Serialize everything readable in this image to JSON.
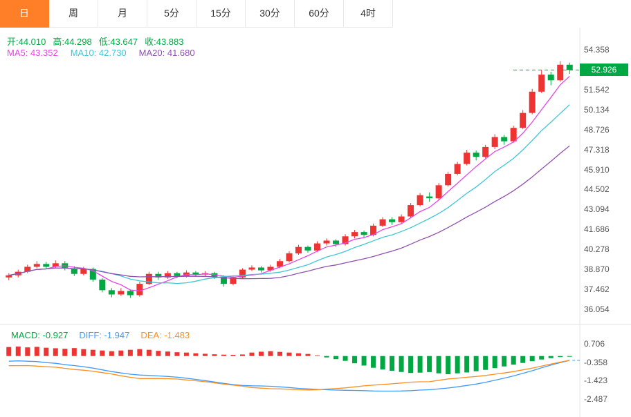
{
  "toolbar": {
    "tabs": [
      {
        "label": "日"
      },
      {
        "label": "周"
      },
      {
        "label": "月"
      },
      {
        "label": "5分"
      },
      {
        "label": "15分"
      },
      {
        "label": "30分"
      },
      {
        "label": "60分"
      },
      {
        "label": "4时"
      }
    ],
    "active_tab": "日"
  },
  "readout": {
    "open": "开:44.010",
    "high": "高:44.298",
    "low": "低:43.647",
    "close": "收:43.883",
    "ma5": "MA5: 43.352",
    "ma10": "MA10: 42.730",
    "ma20": "MA20: 41.680",
    "macd": "MACD: -0.927",
    "diff": "DIFF: -1.947",
    "dea": "DEA: -1.483"
  },
  "chart_data": {
    "type": "candlestick",
    "title": "Daily K-line with MA5/MA10/MA20 and MACD sub-chart",
    "last_price": 52.926,
    "last_price_label": "52.926",
    "price_axis": {
      "top_value": 54.358,
      "bottom_value": 36.054,
      "labels": [
        "54.358",
        "51.542",
        "50.134",
        "48.726",
        "47.318",
        "45.910",
        "44.502",
        "43.094",
        "41.686",
        "40.278",
        "38.870",
        "37.462",
        "36.054"
      ]
    },
    "macd_axis": {
      "top_value": 0.706,
      "bottom_value": -2.487,
      "labels": [
        "0.706",
        "-0.358",
        "-1.423",
        "-2.487"
      ]
    },
    "ma_periods": [
      5,
      10,
      20
    ],
    "candles": [
      [
        38.3,
        38.6,
        38.1,
        38.45
      ],
      [
        38.45,
        38.85,
        38.3,
        38.7
      ],
      [
        38.7,
        39.2,
        38.6,
        39.05
      ],
      [
        39.05,
        39.45,
        38.95,
        39.25
      ],
      [
        39.25,
        39.4,
        38.9,
        39.05
      ],
      [
        39.05,
        39.5,
        38.95,
        39.3
      ],
      [
        39.3,
        39.45,
        38.8,
        38.95
      ],
      [
        38.95,
        39.1,
        38.4,
        38.55
      ],
      [
        38.55,
        39.05,
        38.45,
        38.9
      ],
      [
        38.9,
        39.0,
        38.0,
        38.15
      ],
      [
        38.15,
        38.25,
        37.25,
        37.4
      ],
      [
        37.4,
        37.55,
        36.9,
        37.1
      ],
      [
        37.1,
        37.55,
        37.0,
        37.35
      ],
      [
        37.35,
        37.45,
        36.85,
        37.05
      ],
      [
        37.05,
        38.0,
        36.95,
        37.85
      ],
      [
        37.85,
        38.7,
        37.75,
        38.55
      ],
      [
        38.55,
        38.7,
        38.15,
        38.3
      ],
      [
        38.3,
        38.75,
        38.2,
        38.6
      ],
      [
        38.6,
        38.7,
        38.25,
        38.4
      ],
      [
        38.4,
        38.8,
        38.3,
        38.65
      ],
      [
        38.65,
        38.75,
        38.35,
        38.5
      ],
      [
        38.5,
        38.75,
        38.4,
        38.6
      ],
      [
        38.6,
        38.7,
        38.2,
        38.35
      ],
      [
        38.35,
        38.45,
        37.65,
        37.85
      ],
      [
        37.85,
        38.45,
        37.75,
        38.3
      ],
      [
        38.3,
        38.95,
        38.2,
        38.85
      ],
      [
        38.85,
        39.15,
        38.75,
        39.0
      ],
      [
        39.0,
        39.1,
        38.65,
        38.8
      ],
      [
        38.8,
        39.2,
        38.7,
        39.05
      ],
      [
        39.05,
        39.6,
        38.95,
        39.45
      ],
      [
        39.45,
        40.15,
        39.35,
        40.0
      ],
      [
        40.0,
        40.6,
        39.9,
        40.45
      ],
      [
        40.45,
        40.55,
        40.05,
        40.2
      ],
      [
        40.2,
        40.85,
        40.1,
        40.7
      ],
      [
        40.7,
        41.05,
        40.55,
        40.9
      ],
      [
        40.9,
        41.0,
        40.45,
        40.65
      ],
      [
        40.65,
        41.35,
        40.55,
        41.2
      ],
      [
        41.2,
        41.65,
        41.05,
        41.5
      ],
      [
        41.5,
        41.6,
        41.1,
        41.3
      ],
      [
        41.3,
        42.1,
        41.2,
        41.95
      ],
      [
        41.95,
        42.55,
        41.85,
        42.4
      ],
      [
        42.4,
        42.55,
        42.0,
        42.2
      ],
      [
        42.2,
        42.75,
        42.1,
        42.6
      ],
      [
        42.6,
        43.55,
        42.5,
        43.4
      ],
      [
        43.4,
        44.25,
        43.3,
        44.1
      ],
      [
        44.01,
        44.298,
        43.647,
        43.883
      ],
      [
        43.88,
        44.95,
        43.78,
        44.8
      ],
      [
        44.8,
        45.75,
        44.7,
        45.6
      ],
      [
        45.6,
        46.45,
        45.5,
        46.3
      ],
      [
        46.3,
        47.3,
        46.2,
        47.1
      ],
      [
        47.1,
        47.25,
        46.55,
        46.8
      ],
      [
        46.8,
        47.65,
        46.7,
        47.5
      ],
      [
        47.5,
        48.4,
        47.35,
        48.2
      ],
      [
        48.2,
        48.35,
        47.65,
        47.9
      ],
      [
        47.9,
        49.0,
        47.8,
        48.85
      ],
      [
        48.85,
        50.1,
        48.75,
        49.9
      ],
      [
        49.9,
        51.6,
        49.8,
        51.4
      ],
      [
        51.4,
        52.9,
        51.3,
        52.6
      ],
      [
        52.6,
        52.8,
        51.85,
        52.2
      ],
      [
        52.2,
        53.55,
        52.1,
        53.3
      ],
      [
        53.3,
        53.45,
        52.65,
        52.93
      ]
    ],
    "macd": {
      "hist": [
        0.52,
        0.55,
        0.5,
        0.53,
        0.48,
        0.45,
        0.42,
        0.46,
        0.4,
        0.36,
        0.32,
        0.28,
        0.32,
        0.36,
        0.4,
        0.36,
        0.3,
        0.26,
        0.22,
        0.2,
        0.16,
        0.13,
        0.1,
        0.08,
        0.07,
        0.09,
        0.2,
        0.25,
        0.28,
        0.24,
        0.2,
        0.16,
        0.12,
        0.04,
        -0.08,
        -0.18,
        -0.28,
        -0.42,
        -0.55,
        -0.68,
        -0.78,
        -0.85,
        -0.92,
        -0.98,
        -0.96,
        -0.927,
        -1.0,
        -1.05,
        -1.0,
        -0.95,
        -0.88,
        -0.8,
        -0.7,
        -0.6,
        -0.5,
        -0.4,
        -0.3,
        -0.2,
        -0.12,
        -0.06,
        -0.02
      ],
      "diff": [
        -0.3,
        -0.28,
        -0.3,
        -0.32,
        -0.38,
        -0.42,
        -0.5,
        -0.55,
        -0.62,
        -0.7,
        -0.8,
        -0.9,
        -0.98,
        -1.05,
        -1.1,
        -1.12,
        -1.15,
        -1.18,
        -1.22,
        -1.28,
        -1.35,
        -1.42,
        -1.5,
        -1.58,
        -1.65,
        -1.7,
        -1.72,
        -1.73,
        -1.75,
        -1.78,
        -1.82,
        -1.87,
        -1.9,
        -1.93,
        -1.95,
        -1.97,
        -1.98,
        -1.99,
        -2.0,
        -2.02,
        -2.03,
        -2.03,
        -2.02,
        -2.0,
        -1.97,
        -1.947,
        -1.9,
        -1.85,
        -1.78,
        -1.7,
        -1.62,
        -1.52,
        -1.4,
        -1.28,
        -1.15,
        -1.0,
        -0.85,
        -0.68,
        -0.52,
        -0.38,
        -0.25
      ]
    },
    "colors": {
      "up": "#ee3333",
      "down": "#00a843",
      "ma5": "#e645e6",
      "ma10": "#3ec6d8",
      "ma20": "#9050b0",
      "diff_line": "#3d9bff",
      "dea_line": "#ff8f1f",
      "accent_tab": "#ff7f28",
      "badge": "#00a843",
      "axis_line": "#e3e3e3"
    },
    "legend_position": "top-left overlays",
    "grid": false
  }
}
